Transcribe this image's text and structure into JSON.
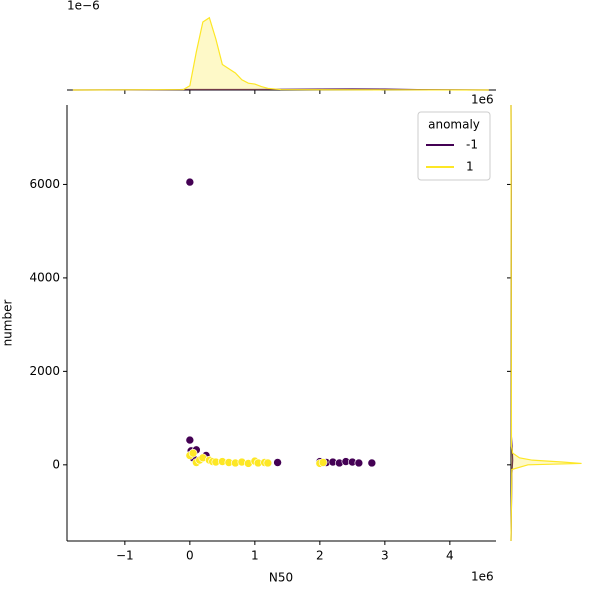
{
  "chart_data": {
    "type": "scatter",
    "x_label": "N50",
    "y_label": "number",
    "x_offset_label": "1e6",
    "top_offset_label": "1e6",
    "marginal_offset_label": "1e−6",
    "xlim": [
      -1.89,
      4.71
    ],
    "xticks": [
      {
        "value": -1,
        "label": "−1"
      },
      0,
      1,
      2,
      3,
      4
    ],
    "ylim": [
      -1630,
      7700
    ],
    "yticks": [
      0,
      2000,
      4000,
      6000
    ],
    "legend": {
      "title": "anomaly",
      "position": "upper right"
    },
    "series": [
      {
        "name": "-1",
        "color": "#440154",
        "x": [
          0,
          0,
          0.02,
          0.1,
          0.05,
          0.25,
          0.3,
          1.35,
          2.0,
          2.1,
          2.2,
          2.3,
          2.4,
          2.5,
          2.6,
          2.8
        ],
        "values": [
          6050,
          530,
          300,
          320,
          150,
          200,
          100,
          50,
          70,
          50,
          60,
          40,
          70,
          60,
          40,
          40
        ]
      },
      {
        "name": "1",
        "color": "#fde725",
        "x": [
          0,
          0.05,
          0.1,
          0.15,
          0.2,
          0.3,
          0.35,
          0.4,
          0.5,
          0.6,
          0.7,
          0.8,
          0.9,
          1.0,
          1.05,
          1.15,
          1.2,
          2.0,
          2.05
        ],
        "values": [
          200,
          250,
          50,
          100,
          150,
          100,
          70,
          60,
          70,
          50,
          40,
          60,
          30,
          80,
          40,
          50,
          40,
          30,
          50
        ]
      }
    ],
    "top_marginal": {
      "type": "density",
      "ylim": [
        0,
        1
      ],
      "series": [
        {
          "color": "#440154",
          "x": [
            -1.8,
            -0.5,
            0,
            1,
            2,
            2.5,
            3,
            3.5,
            4.6
          ],
          "density": [
            0,
            0.002,
            0.006,
            0.006,
            0.01,
            0.012,
            0.01,
            0.004,
            0
          ]
        },
        {
          "color": "#fde725",
          "x": [
            -1.8,
            -0.1,
            0,
            0.1,
            0.2,
            0.3,
            0.4,
            0.5,
            0.6,
            0.7,
            0.8,
            0.9,
            1.0,
            1.1,
            1.2,
            1.4,
            2.0,
            4.6
          ],
          "density": [
            0,
            0.005,
            0.05,
            0.45,
            0.8,
            0.85,
            0.6,
            0.3,
            0.25,
            0.2,
            0.12,
            0.08,
            0.07,
            0.04,
            0.02,
            0.005,
            0.003,
            0
          ]
        }
      ]
    },
    "right_marginal": {
      "type": "density",
      "xlim": [
        0,
        1
      ],
      "series": [
        {
          "color": "#440154",
          "y": [
            -1630,
            -200,
            100,
            300,
            600,
            6000,
            7700
          ],
          "density": [
            0,
            0.01,
            0.02,
            0.015,
            0.005,
            0.003,
            0
          ]
        },
        {
          "color": "#fde725",
          "y": [
            -1630,
            -100,
            0,
            30,
            60,
            100,
            150,
            250,
            400,
            7700
          ],
          "density": [
            0,
            0.01,
            0.2,
            0.83,
            0.6,
            0.25,
            0.1,
            0.02,
            0.005,
            0
          ]
        }
      ]
    }
  }
}
